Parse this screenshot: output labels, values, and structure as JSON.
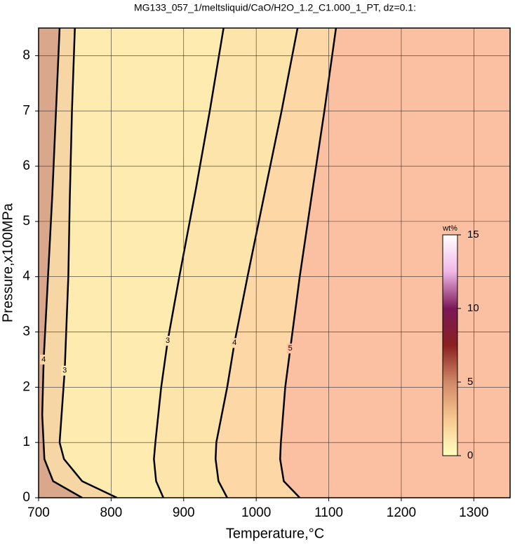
{
  "chart_data": {
    "type": "contour",
    "title": "MG133_057_1/meltsliquid/CaO/H2O_1.2_C1.000_1_PT, dz=0.1:",
    "x_label": "Temperature,°C",
    "y_label": "Pressure,x100MPa",
    "xlim": [
      700,
      1350
    ],
    "ylim": [
      0,
      8.5
    ],
    "xticks": [
      700,
      800,
      900,
      1000,
      1100,
      1200,
      1300
    ],
    "yticks": [
      0,
      1,
      2,
      3,
      4,
      5,
      6,
      7,
      8
    ],
    "grid": true,
    "base_color": "#d9a88c",
    "contours": [
      {
        "level": 4,
        "fill": "#f7d6a6",
        "pressure": [
          0,
          0.3,
          0.7,
          1.5,
          2.5,
          4,
          5.5,
          7,
          8.5
        ],
        "temperature": [
          760,
          720,
          708,
          705,
          707,
          713,
          719,
          724,
          729
        ]
      },
      {
        "level": 3,
        "fill": "#feebb0",
        "pressure": [
          0,
          0.3,
          0.7,
          1,
          2.3,
          4,
          5.4,
          7,
          8.5
        ],
        "temperature": [
          808,
          760,
          735,
          729,
          736,
          741,
          743,
          746,
          750
        ]
      },
      {
        "level": 3,
        "fill": "#fde4aa",
        "pressure": [
          0,
          0.3,
          0.7,
          1,
          2,
          2.84,
          4,
          5.6,
          7,
          8.5
        ],
        "temperature": [
          872,
          862,
          859,
          861,
          869,
          878,
          894,
          917,
          936,
          955
        ]
      },
      {
        "level": 4,
        "fill": "#fdd8a6",
        "pressure": [
          0,
          0.3,
          0.7,
          1,
          2,
          2.8,
          4,
          5.6,
          7,
          8.5
        ],
        "temperature": [
          960,
          948,
          944,
          945,
          960,
          970,
          988,
          1013,
          1035,
          1057
        ]
      },
      {
        "level": 5,
        "fill": "#fbbfa1",
        "pressure": [
          0,
          0.3,
          0.7,
          1,
          2,
          2.7,
          4,
          5.6,
          7,
          8.5
        ],
        "temperature": [
          1060,
          1038,
          1033,
          1034,
          1040,
          1047,
          1060,
          1078,
          1094,
          1110
        ]
      }
    ],
    "colorbar": {
      "title": "wt%",
      "lim": [
        0,
        15
      ],
      "ticks": [
        0,
        5,
        10,
        15
      ],
      "colors": [
        "#ffffc0",
        "#f7c890",
        "#d08868",
        "#8a2020",
        "#7a1858",
        "#f0b8e8",
        "#ffffff"
      ]
    }
  }
}
